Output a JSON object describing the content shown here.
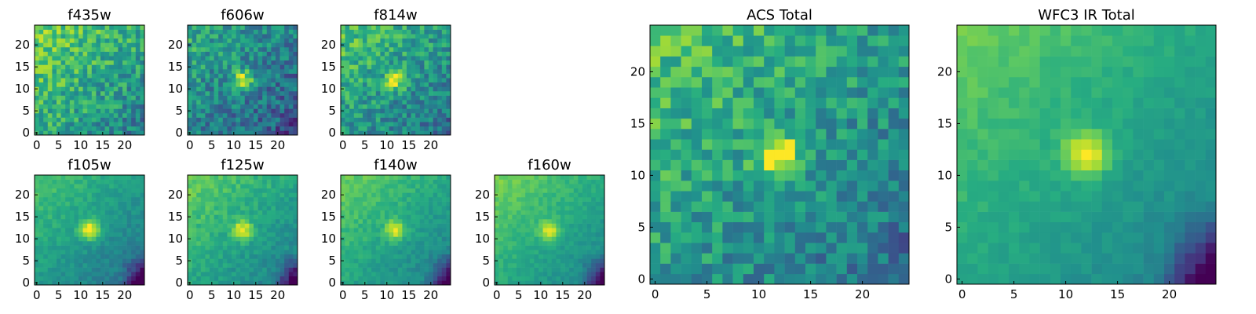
{
  "figure": {
    "colormap": "viridis",
    "colors": {
      "low": "#440154",
      "mid": "#21918c",
      "high": "#fde725"
    }
  },
  "chart_data": [
    {
      "type": "heatmap",
      "title": "f435w",
      "grid_size": 25,
      "xlim": [
        0,
        25
      ],
      "ylim": [
        0,
        25
      ],
      "xticks": [
        0,
        5,
        10,
        15,
        20
      ],
      "yticks": [
        0,
        5,
        10,
        15,
        20
      ],
      "source_center": [
        12,
        12
      ],
      "source_strength": 0.0,
      "background_level": 0.62,
      "noise": 0.18,
      "features": "noisy, no clear central source"
    },
    {
      "type": "heatmap",
      "title": "f606w",
      "grid_size": 25,
      "xlim": [
        0,
        25
      ],
      "ylim": [
        0,
        25
      ],
      "xticks": [
        0,
        5,
        10,
        15,
        20
      ],
      "yticks": [
        0,
        5,
        10,
        15,
        20
      ],
      "source_center": [
        12,
        12
      ],
      "source_strength": 0.55,
      "background_level": 0.45,
      "noise": 0.18,
      "features": "noisy, compact bright source at center"
    },
    {
      "type": "heatmap",
      "title": "f814w",
      "grid_size": 25,
      "xlim": [
        0,
        25
      ],
      "ylim": [
        0,
        25
      ],
      "xticks": [
        0,
        5,
        10,
        15,
        20
      ],
      "yticks": [
        0,
        5,
        10,
        15,
        20
      ],
      "source_center": [
        12,
        12
      ],
      "source_strength": 0.45,
      "background_level": 0.55,
      "noise": 0.17,
      "features": "noisy, bright source at center"
    },
    {
      "type": "heatmap",
      "title": "f105w",
      "grid_size": 25,
      "xlim": [
        0,
        25
      ],
      "ylim": [
        0,
        25
      ],
      "xticks": [
        0,
        5,
        10,
        15,
        20
      ],
      "yticks": [
        0,
        5,
        10,
        15,
        20
      ],
      "source_center": [
        12,
        12
      ],
      "source_strength": 0.5,
      "background_level": 0.55,
      "noise": 0.06,
      "features": "smooth, bright center, dark lower-right corner"
    },
    {
      "type": "heatmap",
      "title": "f125w",
      "grid_size": 25,
      "xlim": [
        0,
        25
      ],
      "ylim": [
        0,
        25
      ],
      "xticks": [
        0,
        5,
        10,
        15,
        20
      ],
      "yticks": [
        0,
        5,
        10,
        15,
        20
      ],
      "source_center": [
        12,
        12
      ],
      "source_strength": 0.4,
      "background_level": 0.6,
      "noise": 0.07,
      "features": "smooth, bright center, brighter upper-left"
    },
    {
      "type": "heatmap",
      "title": "f140w",
      "grid_size": 25,
      "xlim": [
        0,
        25
      ],
      "ylim": [
        0,
        25
      ],
      "xticks": [
        0,
        5,
        10,
        15,
        20
      ],
      "yticks": [
        0,
        5,
        10,
        15,
        20
      ],
      "source_center": [
        12,
        12
      ],
      "source_strength": 0.4,
      "background_level": 0.6,
      "noise": 0.06,
      "features": "smooth, bright center, darker right side"
    },
    {
      "type": "heatmap",
      "title": "f160w",
      "grid_size": 25,
      "xlim": [
        0,
        25
      ],
      "ylim": [
        0,
        25
      ],
      "xticks": [
        0,
        5,
        10,
        15,
        20
      ],
      "yticks": [
        0,
        5,
        10,
        15,
        20
      ],
      "source_center": [
        12,
        12
      ],
      "source_strength": 0.35,
      "background_level": 0.62,
      "noise": 0.05,
      "features": "smooth, bright center, dark lower-right corner"
    },
    {
      "type": "heatmap",
      "title": "ACS Total",
      "grid_size": 25,
      "xlim": [
        0,
        25
      ],
      "ylim": [
        0,
        25
      ],
      "xticks": [
        0,
        5,
        10,
        15,
        20
      ],
      "yticks": [
        0,
        5,
        10,
        15,
        20
      ],
      "source_center": [
        12,
        12
      ],
      "source_strength": 0.5,
      "background_level": 0.55,
      "noise": 0.16,
      "features": "blocky noise, bright central source"
    },
    {
      "type": "heatmap",
      "title": "WFC3 IR Total",
      "grid_size": 25,
      "xlim": [
        0,
        25
      ],
      "ylim": [
        0,
        25
      ],
      "xticks": [
        0,
        5,
        10,
        15,
        20
      ],
      "yticks": [
        0,
        5,
        10,
        15,
        20
      ],
      "source_center": [
        12,
        12
      ],
      "source_strength": 0.4,
      "background_level": 0.6,
      "noise": 0.04,
      "features": "smooth, bright center, brighter top-left, dark lower-right corner"
    }
  ]
}
